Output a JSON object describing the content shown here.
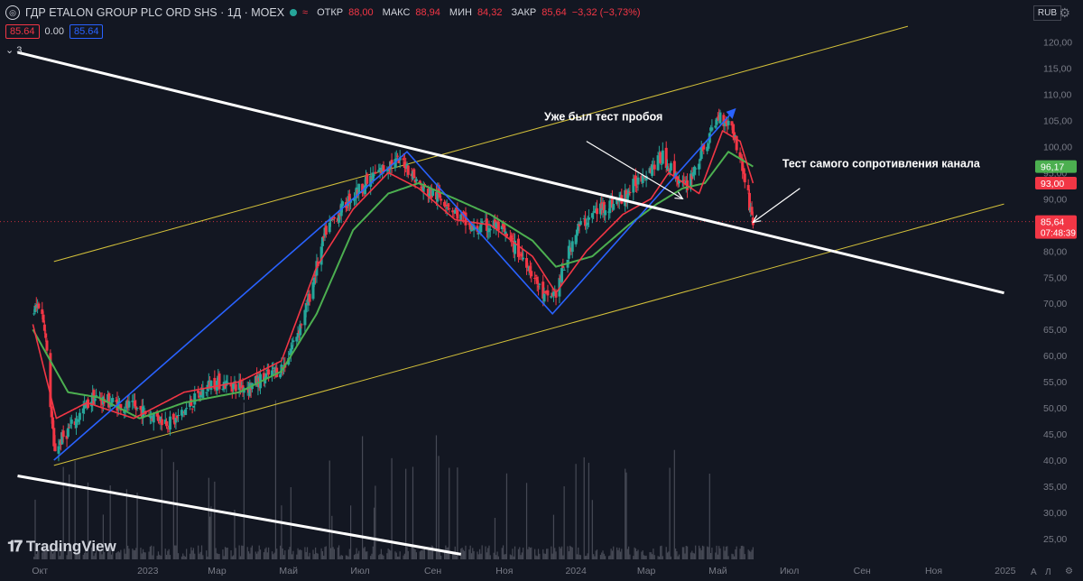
{
  "header": {
    "symbol": "ГДР ETALON GROUP PLC ORD SHS · 1Д · MOEX",
    "open_label": "ОТКР",
    "open": "88,00",
    "high_label": "МАКС",
    "high": "88,94",
    "low_label": "МИН",
    "low": "84,32",
    "close_label": "ЗАКР",
    "close": "85,64",
    "change": "−3,32 (−3,73%)",
    "bid": "85.64",
    "spread": "0.00",
    "ask": "85.64",
    "indicators_count": "3",
    "currency": "RUB",
    "logo_icon": "etalon-logo-icon",
    "brand": "TradingView",
    "axis_corner_left": "A",
    "axis_corner_right": "Л"
  },
  "colors": {
    "background": "#131722",
    "up": "#26a69a",
    "down": "#f23645",
    "ma_fast": "#f23645",
    "ma_slow": "#4caf50",
    "channel": "#d4c13a",
    "trendline": "#ffffff",
    "zigzag": "#2962ff",
    "text": "#d1d4dc",
    "axis": "#787b86"
  },
  "chart_data": {
    "type": "candlestick",
    "y_axis": {
      "ticks": [
        "120,00",
        "115,00",
        "110,00",
        "105,00",
        "100,00",
        "95,00",
        "90,00",
        "85,00",
        "80,00",
        "75,00",
        "70,00",
        "65,00",
        "60,00",
        "55,00",
        "50,00",
        "45,00",
        "40,00",
        "35,00",
        "30,00",
        "25,00"
      ],
      "range": [
        22,
        124
      ]
    },
    "x_axis": {
      "ticks": [
        "Окт",
        "2023",
        "Мар",
        "Май",
        "Июл",
        "Сен",
        "Ноя",
        "2024",
        "Мар",
        "Май",
        "Июл",
        "Сен",
        "Ноя",
        "2025"
      ]
    },
    "price_path": {
      "x": [
        "2022-09-25",
        "2022-09-30",
        "2022-10-05",
        "2022-10-13",
        "2022-11-15",
        "2022-12-20",
        "2023-01-22",
        "2023-02-25",
        "2023-03-28",
        "2023-04-27",
        "2023-05-15",
        "2023-06-02",
        "2023-06-22",
        "2023-07-11",
        "2023-07-28",
        "2023-08-08",
        "2023-08-22",
        "2023-09-10",
        "2023-10-05",
        "2023-10-25",
        "2023-11-20",
        "2023-12-05",
        "2023-12-15",
        "2024-01-01",
        "2024-01-20",
        "2024-02-10",
        "2024-02-28",
        "2024-03-15",
        "2024-04-03",
        "2024-04-18",
        "2024-05-02",
        "2024-05-13",
        "2024-05-22",
        "2024-05-31"
      ],
      "y": [
        68,
        70,
        66,
        42,
        52,
        50,
        47,
        55,
        54,
        58,
        68,
        84,
        90,
        94,
        97,
        97,
        92,
        90,
        84,
        85,
        78,
        71,
        72,
        84,
        88,
        90,
        95,
        98,
        92,
        99,
        106,
        104,
        96,
        85.64
      ]
    },
    "ma_fast": {
      "name": "",
      "x": [
        "2022-09-25",
        "2022-10-15",
        "2022-11-10",
        "2022-12-20",
        "2023-02-01",
        "2023-03-20",
        "2023-04-25",
        "2023-05-25",
        "2023-06-25",
        "2023-07-25",
        "2023-08-20",
        "2023-09-20",
        "2023-10-20",
        "2023-11-25",
        "2023-12-15",
        "2024-01-10",
        "2024-02-10",
        "2024-03-05",
        "2024-03-20",
        "2024-04-15",
        "2024-05-05",
        "2024-05-20",
        "2024-05-31"
      ],
      "y": [
        66,
        48,
        51,
        48,
        53,
        55,
        59,
        77,
        88,
        95,
        92,
        86,
        85,
        79,
        72,
        80,
        87,
        90,
        95,
        91,
        103,
        101,
        93
      ]
    },
    "ma_slow": {
      "name": "",
      "x": [
        "2022-09-25",
        "2022-10-25",
        "2022-11-20",
        "2022-12-25",
        "2023-02-01",
        "2023-03-20",
        "2023-04-25",
        "2023-05-25",
        "2023-06-25",
        "2023-07-25",
        "2023-08-20",
        "2023-09-20",
        "2023-10-20",
        "2023-11-25",
        "2023-12-15",
        "2024-01-15",
        "2024-02-15",
        "2024-03-10",
        "2024-04-01",
        "2024-04-20",
        "2024-05-10",
        "2024-05-31"
      ],
      "y": [
        65,
        53,
        52,
        48,
        51,
        53,
        57,
        68,
        84,
        91,
        93,
        90,
        87,
        82,
        77,
        79,
        85,
        89,
        92,
        93,
        99,
        96.17
      ]
    },
    "zigzag": {
      "x": [
        "2022-10-13",
        "2023-08-10",
        "2023-12-12",
        "2024-05-15"
      ],
      "y": [
        40,
        99,
        68,
        107
      ]
    },
    "trendline_main": {
      "x": [
        "2022-09-12",
        "2024-12-31"
      ],
      "y": [
        118,
        72
      ]
    },
    "trendline_lower": {
      "x": [
        "2022-09-12",
        "2023-09-25"
      ],
      "y": [
        37,
        22
      ]
    },
    "channel_upper": {
      "x": [
        "2022-10-13",
        "2024-10-10"
      ],
      "y": [
        78,
        123
      ]
    },
    "channel_lower": {
      "x": [
        "2022-10-13",
        "2024-12-31"
      ],
      "y": [
        39,
        89
      ]
    },
    "last_price_line": 85.64,
    "volume": {
      "note": ""
    },
    "price_labels": [
      {
        "value": "96,17",
        "color": "#4caf50"
      },
      {
        "value": "93,00",
        "color": "#f23645"
      },
      {
        "value": "85,64",
        "sub": "07:48:39",
        "color": "#f23645"
      }
    ],
    "annotations": [
      {
        "text": "Уже был тест пробоя",
        "x": "2023-12-05",
        "y": 105
      },
      {
        "text": "Тест самого сопротивления канала",
        "x": "2024-06-25",
        "y": 96
      }
    ]
  }
}
